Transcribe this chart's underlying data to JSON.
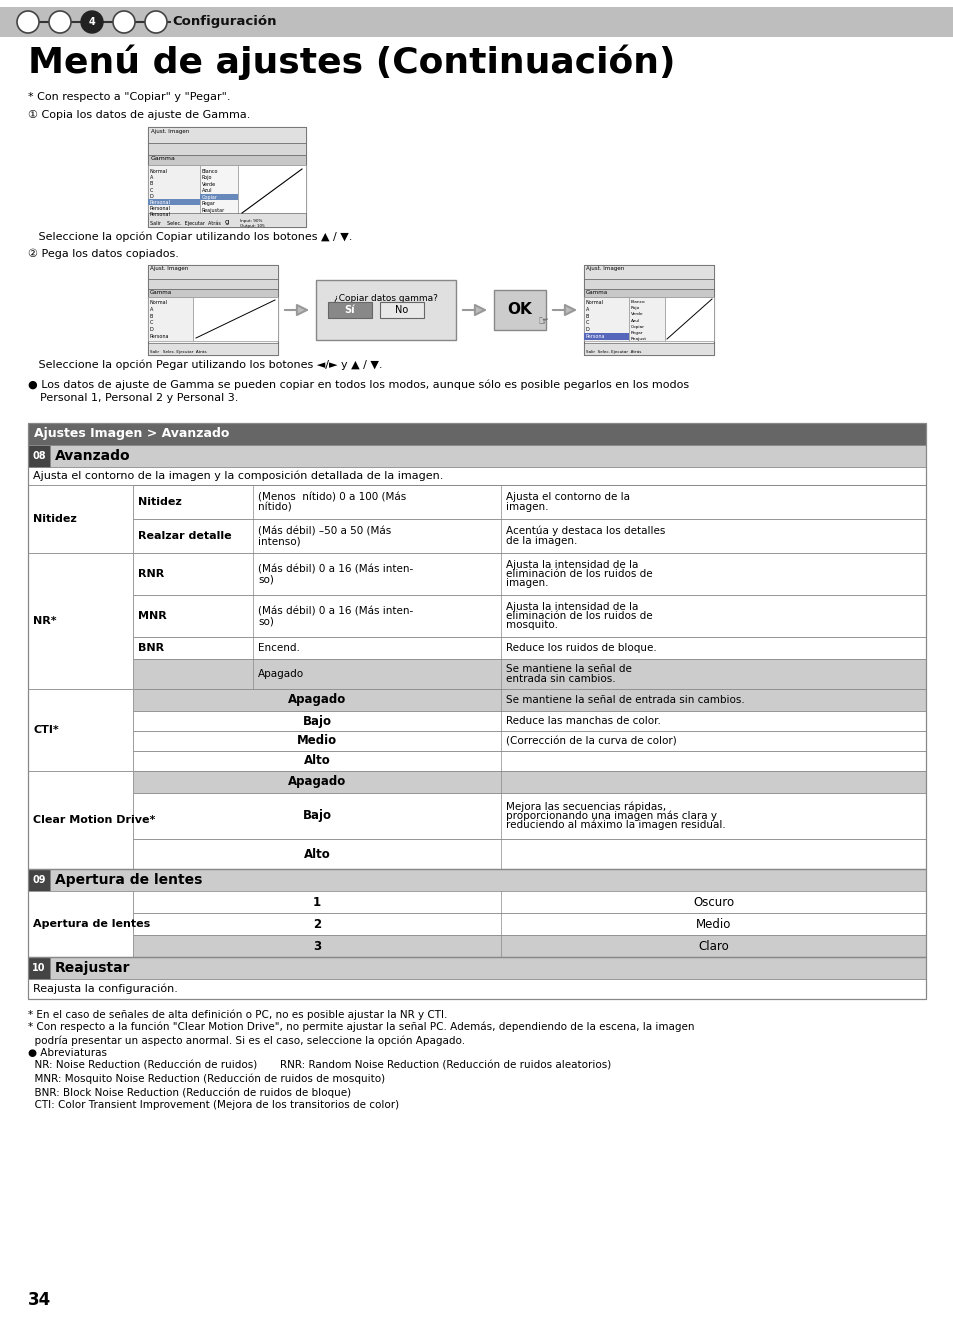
{
  "page_bg": "#ffffff",
  "header_bar_color": "#bebebe",
  "header_text": "Configuración",
  "title": "Menú de ajustes (Continuación)",
  "page_number": "34",
  "section_header_color": "#666666",
  "section_header_text_color": "#ffffff",
  "section_header": "Ajustes Imagen > Avanzado",
  "subsection_header_color": "#cccccc",
  "row_alt_color": "#cccccc",
  "row_normal_color": "#ffffff",
  "table_border_color": "#888888",
  "footnotes": [
    "* En el caso de señales de alta definición o PC, no es posible ajustar la NR y CTI.",
    "* Con respecto a la función \"Clear Motion Drive\", no permite ajustar la señal PC. Además, dependiendo de la escena, la imagen",
    "  podría presentar un aspecto anormal. Si es el caso, seleccione la opción Apagado.",
    "● Abreviaturas",
    "  NR: Noise Reduction (Reducción de ruidos)       RNR: Random Noise Reduction (Reducción de ruidos aleatorios)",
    "  MNR: Mosquito Noise Reduction (Reducción de ruidos de mosquito)",
    "  BNR: Block Noise Reduction (Reducción de ruidos de bloque)",
    "  CTI: Color Transient Improvement (Mejora de los transitorios de color)"
  ]
}
